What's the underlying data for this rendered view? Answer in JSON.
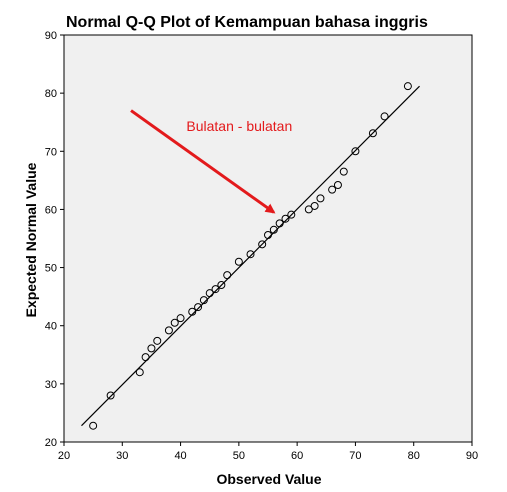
{
  "chart_data": {
    "type": "scatter",
    "title": "Normal Q-Q Plot of Kemampuan bahasa inggris",
    "xlabel": "Observed Value",
    "ylabel": "Expected Normal Value",
    "xlim": [
      20,
      90
    ],
    "ylim": [
      20,
      90
    ],
    "xticks": [
      "20",
      "30",
      "40",
      "50",
      "60",
      "70",
      "80",
      "90"
    ],
    "yticks": [
      "20",
      "30",
      "40",
      "50",
      "60",
      "70",
      "80",
      "90"
    ],
    "grid": false,
    "plot_background": "#f0f0f0",
    "point_color": "#000000",
    "points": [
      {
        "x": 25,
        "y": 22.8
      },
      {
        "x": 28,
        "y": 28
      },
      {
        "x": 33,
        "y": 32
      },
      {
        "x": 34,
        "y": 34.6
      },
      {
        "x": 35,
        "y": 36.1
      },
      {
        "x": 36,
        "y": 37.4
      },
      {
        "x": 38,
        "y": 39.2
      },
      {
        "x": 39,
        "y": 40.5
      },
      {
        "x": 40,
        "y": 41.3
      },
      {
        "x": 42,
        "y": 42.4
      },
      {
        "x": 43,
        "y": 43.2
      },
      {
        "x": 44,
        "y": 44.4
      },
      {
        "x": 45,
        "y": 45.6
      },
      {
        "x": 46,
        "y": 46.3
      },
      {
        "x": 47,
        "y": 47
      },
      {
        "x": 48,
        "y": 48.7
      },
      {
        "x": 50,
        "y": 51
      },
      {
        "x": 52,
        "y": 52.3
      },
      {
        "x": 54,
        "y": 54
      },
      {
        "x": 55,
        "y": 55.6
      },
      {
        "x": 56,
        "y": 56.5
      },
      {
        "x": 57,
        "y": 57.6
      },
      {
        "x": 58,
        "y": 58.4
      },
      {
        "x": 59,
        "y": 59.1
      },
      {
        "x": 62,
        "y": 60
      },
      {
        "x": 63,
        "y": 60.6
      },
      {
        "x": 64,
        "y": 61.9
      },
      {
        "x": 66,
        "y": 63.4
      },
      {
        "x": 67,
        "y": 64.2
      },
      {
        "x": 68,
        "y": 66.5
      },
      {
        "x": 70,
        "y": 70
      },
      {
        "x": 73,
        "y": 73.1
      },
      {
        "x": 75,
        "y": 76
      },
      {
        "x": 79,
        "y": 81.2
      }
    ],
    "reference_line": {
      "from": [
        23,
        22.8
      ],
      "to": [
        81,
        81.2
      ]
    },
    "annotation": {
      "text": "Bulatan - bulatan",
      "color": "#e31a1c",
      "at": [
        41,
        73.5
      ],
      "arrow_from": [
        31.5,
        77
      ],
      "arrow_to": [
        56,
        59.5
      ]
    }
  }
}
